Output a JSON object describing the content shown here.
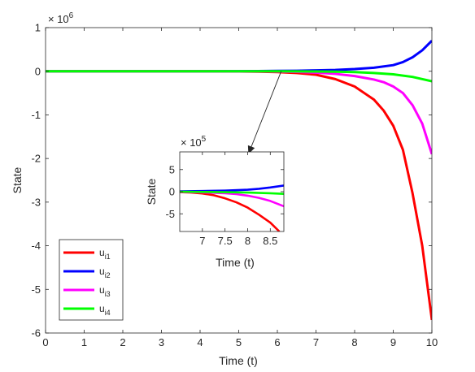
{
  "chart_data": [
    {
      "type": "line",
      "xlabel": "Time (t)",
      "ylabel": "State",
      "y_exponent_label": "× 10",
      "y_exponent_power": "6",
      "xlim": [
        0,
        10
      ],
      "ylim": [
        -6000000,
        1000000
      ],
      "x_ticks": [
        0,
        1,
        2,
        3,
        4,
        5,
        6,
        7,
        8,
        9,
        10
      ],
      "x_tick_labels": [
        "0",
        "1",
        "2",
        "3",
        "4",
        "5",
        "6",
        "7",
        "8",
        "9",
        "10"
      ],
      "y_ticks": [
        -6000000,
        -5000000,
        -4000000,
        -3000000,
        -2000000,
        -1000000,
        0,
        1000000
      ],
      "y_tick_labels": [
        "-6",
        "-5",
        "-4",
        "-3",
        "-2",
        "-1",
        "0",
        "1"
      ],
      "grid": false,
      "legend_position": "bottom-left",
      "legend": [
        {
          "base": "u",
          "sub": "i1"
        },
        {
          "base": "u",
          "sub": "i2"
        },
        {
          "base": "u",
          "sub": "i3"
        },
        {
          "base": "u",
          "sub": "i4"
        }
      ],
      "series": [
        {
          "color": "#ff0000",
          "x": [
            0,
            1,
            2,
            3,
            4,
            5,
            5.5,
            6,
            6.5,
            7,
            7.5,
            8,
            8.25,
            8.5,
            8.75,
            9,
            9.25,
            9.5,
            9.75,
            10
          ],
          "y": [
            0,
            0,
            0,
            0,
            0,
            -5000,
            -10000,
            -20000,
            -40000,
            -80000,
            -180000,
            -350000,
            -500000,
            -650000,
            -900000,
            -1250000,
            -1800000,
            -2800000,
            -4000000,
            -5700000
          ]
        },
        {
          "color": "#0000ff",
          "x": [
            0,
            1,
            2,
            3,
            4,
            5,
            5.5,
            6,
            6.5,
            7,
            7.5,
            8,
            8.5,
            9,
            9.25,
            9.5,
            9.75,
            10
          ],
          "y": [
            0,
            0,
            0,
            0,
            0,
            2000,
            4000,
            8000,
            12000,
            20000,
            30000,
            50000,
            80000,
            140000,
            210000,
            320000,
            480000,
            700000
          ]
        },
        {
          "color": "#ff00ff",
          "x": [
            0,
            1,
            2,
            3,
            4,
            5,
            5.5,
            6,
            6.5,
            7,
            7.5,
            8,
            8.5,
            8.75,
            9,
            9.25,
            9.5,
            9.75,
            10
          ],
          "y": [
            0,
            0,
            0,
            0,
            0,
            -2000,
            -4000,
            -8000,
            -15000,
            -30000,
            -60000,
            -110000,
            -190000,
            -250000,
            -350000,
            -500000,
            -780000,
            -1200000,
            -1900000
          ]
        },
        {
          "color": "#00ff00",
          "x": [
            0,
            1,
            2,
            3,
            4,
            5,
            5.5,
            6,
            6.5,
            7,
            7.5,
            8,
            8.5,
            9,
            9.5,
            10
          ],
          "y": [
            0,
            0,
            0,
            0,
            0,
            0,
            0,
            0,
            -3000,
            -6000,
            -10000,
            -20000,
            -40000,
            -70000,
            -130000,
            -230000
          ]
        }
      ]
    },
    {
      "type": "line",
      "xlabel": "Time (t)",
      "ylabel": "State",
      "y_exponent_label": "× 10",
      "y_exponent_power": "5",
      "xlim": [
        6.5,
        8.8
      ],
      "ylim": [
        -900000,
        900000
      ],
      "x_ticks": [
        7,
        7.5,
        8,
        8.5
      ],
      "x_tick_labels": [
        "7",
        "7.5",
        "8",
        "8.5"
      ],
      "y_ticks": [
        -500000,
        0,
        500000
      ],
      "y_tick_labels": [
        "-5",
        "0",
        "5"
      ],
      "grid": false,
      "series": [
        {
          "color": "#ff0000",
          "x": [
            6.5,
            6.75,
            7,
            7.25,
            7.5,
            7.75,
            8,
            8.25,
            8.5,
            8.7
          ],
          "y": [
            -10000,
            -20000,
            -40000,
            -80000,
            -150000,
            -240000,
            -360000,
            -520000,
            -700000,
            -900000
          ]
        },
        {
          "color": "#0000ff",
          "x": [
            6.5,
            7,
            7.5,
            8,
            8.25,
            8.5,
            8.8
          ],
          "y": [
            8000,
            15000,
            25000,
            45000,
            65000,
            95000,
            140000
          ]
        },
        {
          "color": "#ff00ff",
          "x": [
            6.5,
            7,
            7.5,
            7.75,
            8,
            8.25,
            8.5,
            8.8
          ],
          "y": [
            -5000,
            -15000,
            -35000,
            -55000,
            -90000,
            -140000,
            -210000,
            -330000
          ]
        },
        {
          "color": "#00ff00",
          "x": [
            6.5,
            7,
            7.5,
            8,
            8.5,
            8.8
          ],
          "y": [
            0,
            -5000,
            -10000,
            -20000,
            -35000,
            -50000
          ]
        }
      ]
    }
  ],
  "inset_arrow": {
    "from": [
      6.1,
      0
    ],
    "to": [
      5.25,
      -1900000
    ]
  }
}
